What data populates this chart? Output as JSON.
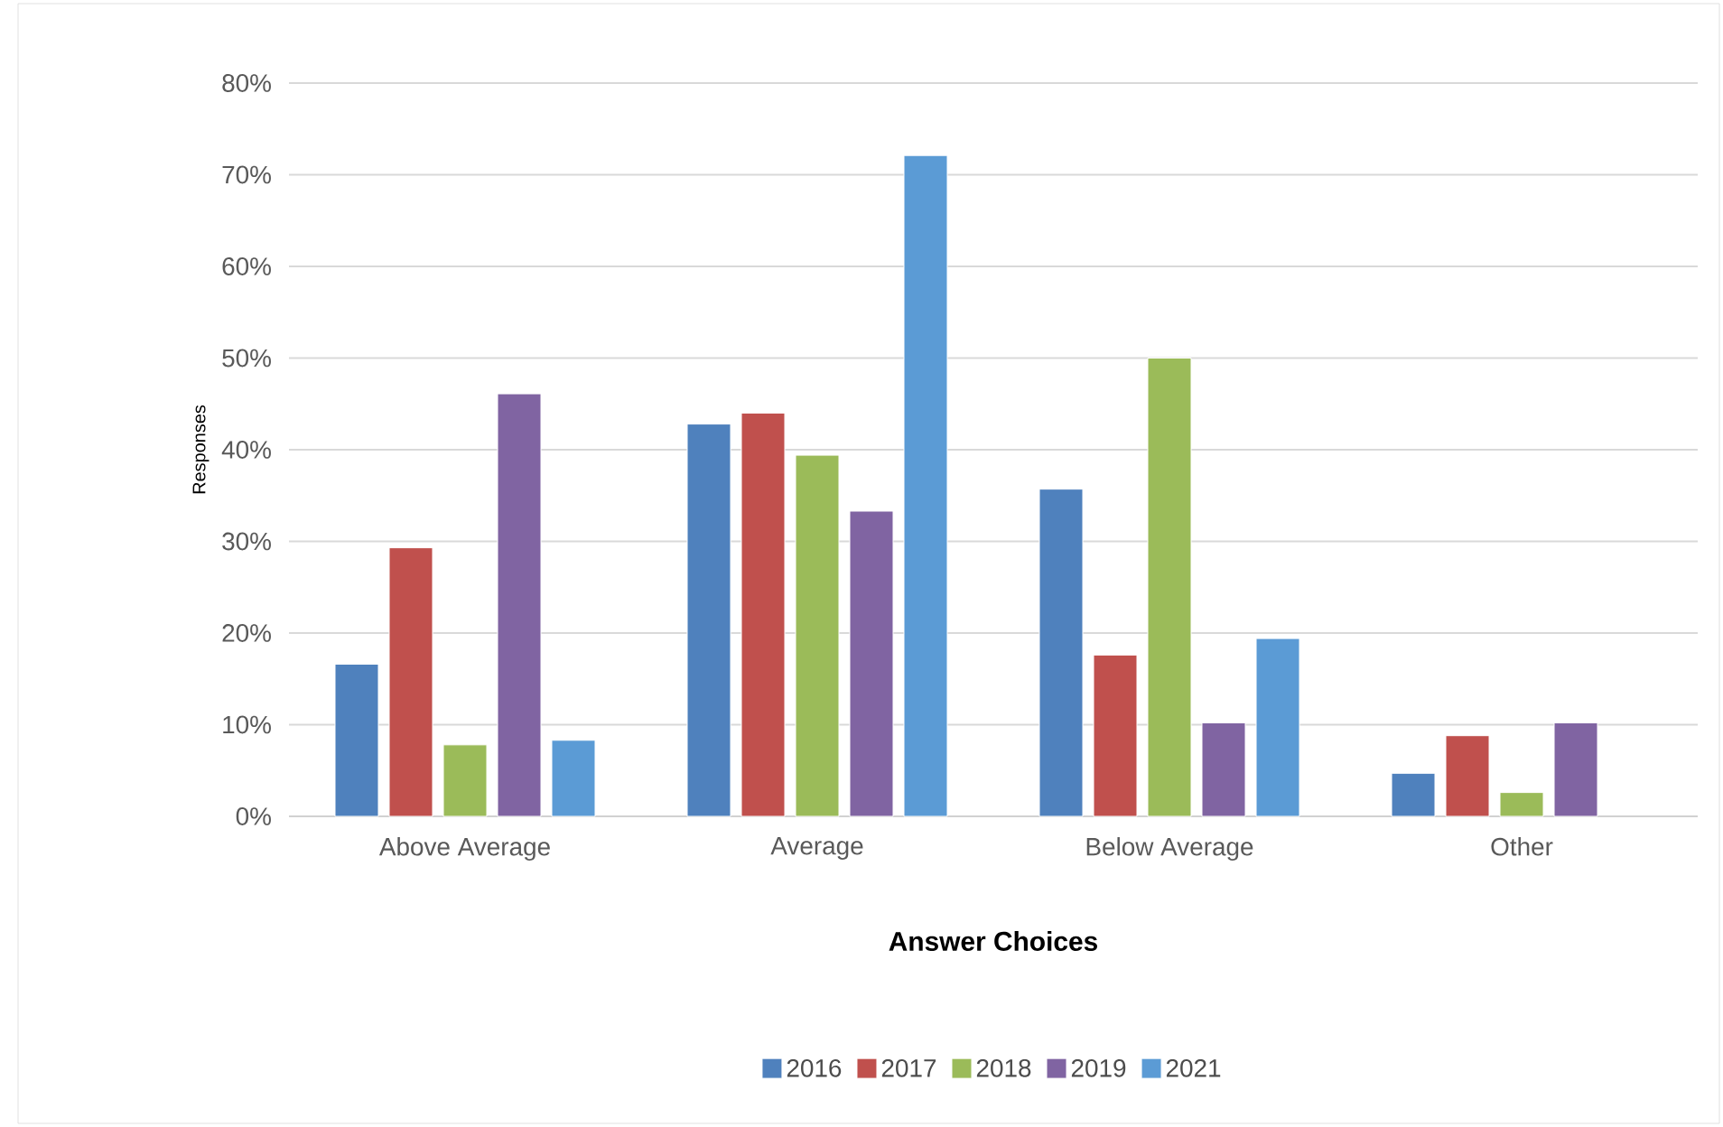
{
  "chart_data": {
    "type": "bar",
    "xlabel": "Answer Choices",
    "ylabel": "Responses",
    "categories": [
      "Above Average",
      "Average",
      "Below Average",
      "Other"
    ],
    "series": [
      {
        "name": "2016",
        "color": "#4f81bd",
        "values": [
          16.6,
          42.8,
          35.7,
          4.7
        ]
      },
      {
        "name": "2017",
        "color": "#c0504d",
        "values": [
          29.3,
          44.0,
          17.6,
          8.8
        ]
      },
      {
        "name": "2018",
        "color": "#9bbb59",
        "values": [
          7.8,
          39.4,
          50.0,
          2.6
        ]
      },
      {
        "name": "2019",
        "color": "#8064a2",
        "values": [
          46.1,
          33.3,
          10.2,
          10.2
        ]
      },
      {
        "name": "2021",
        "color": "#5b9bd5",
        "values": [
          8.3,
          72.1,
          19.4,
          null
        ]
      }
    ],
    "ylim": [
      0,
      80
    ],
    "yticks": [
      {
        "value": 0,
        "label": "0%"
      },
      {
        "value": 10,
        "label": "10%"
      },
      {
        "value": 20,
        "label": "20%"
      },
      {
        "value": 30,
        "label": "30%"
      },
      {
        "value": 40,
        "label": "40%"
      },
      {
        "value": 50,
        "label": "50%"
      },
      {
        "value": 60,
        "label": "60%"
      },
      {
        "value": 70,
        "label": "70%"
      },
      {
        "value": 80,
        "label": "80%"
      }
    ],
    "grid": "y",
    "legend": "bottom"
  }
}
